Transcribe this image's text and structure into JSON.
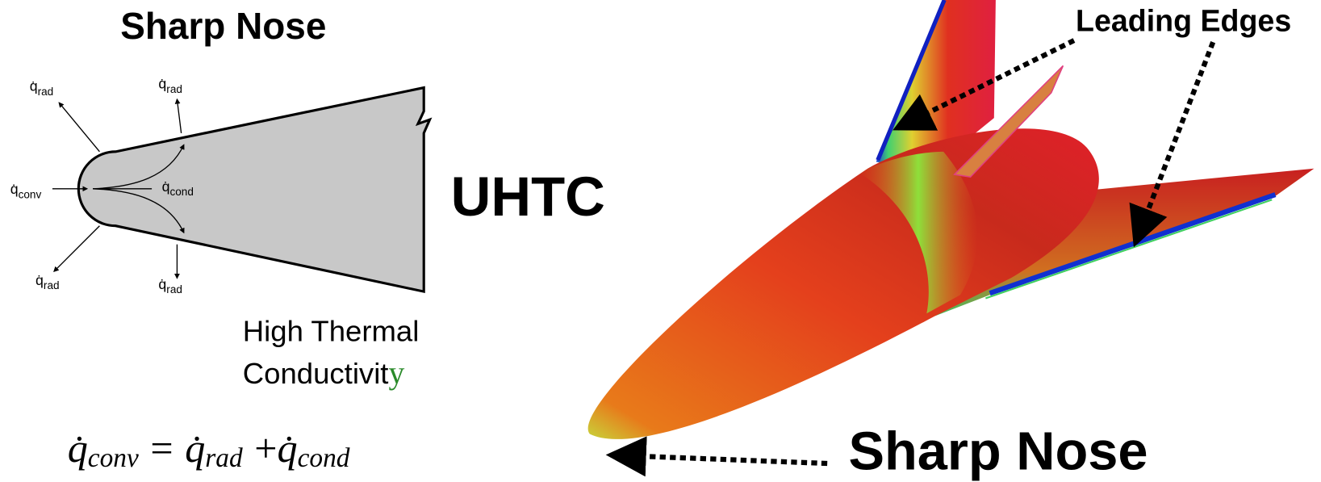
{
  "left_title": "Sharp Nose",
  "fluxes": [
    {
      "symbol": "q̇",
      "sub": "rad"
    },
    {
      "symbol": "q̇",
      "sub": "rad"
    },
    {
      "symbol": "q̇",
      "sub": "conv"
    },
    {
      "symbol": "q̇",
      "sub": "cond"
    },
    {
      "symbol": "q̇",
      "sub": "rad"
    },
    {
      "symbol": "q̇",
      "sub": "rad"
    }
  ],
  "material": "UHTC",
  "property": {
    "line1": "High Thermal",
    "line2": "Conductivit",
    "line2_tail": "y"
  },
  "equation": [
    "q̇",
    "conv",
    "=",
    "q̇",
    "rad",
    "+",
    "q̇",
    "cond"
  ],
  "labels": {
    "leading_edges": "Leading Edges",
    "sharp_nose": "Sharp Nose"
  }
}
